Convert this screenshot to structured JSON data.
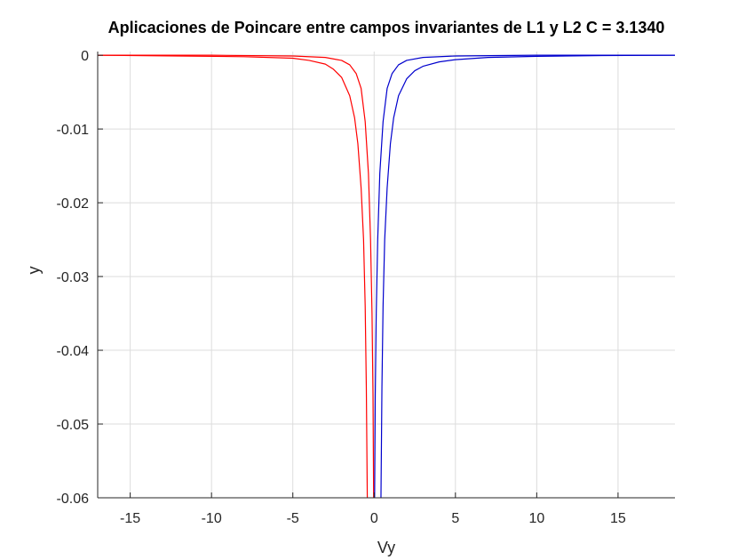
{
  "chart_data": {
    "type": "line",
    "title": "Aplicaciones de Poincare entre campos invariantes de L1 y L2 C = 3.1340",
    "xlabel": "Vy",
    "ylabel": "y",
    "xlim": [
      -17,
      18.5
    ],
    "ylim": [
      -0.06,
      0.0005
    ],
    "xticks": [
      -15,
      -10,
      -5,
      0,
      5,
      10,
      15
    ],
    "xtick_labels": [
      "-15",
      "-10",
      "-5",
      "0",
      "5",
      "10",
      "15"
    ],
    "yticks": [
      0,
      -0.01,
      -0.02,
      -0.03,
      -0.04,
      -0.05,
      -0.06
    ],
    "ytick_labels": [
      "0",
      "-0.01",
      "-0.02",
      "-0.03",
      "-0.04",
      "-0.05",
      "-0.06"
    ],
    "grid": true,
    "series": [
      {
        "color": "#ff0000",
        "points": [
          [
            -17,
            0
          ],
          [
            -12,
            -0.0001
          ],
          [
            -8,
            -0.0002
          ],
          [
            -5,
            -0.0004
          ],
          [
            -4,
            -0.0007
          ],
          [
            -3,
            -0.0012
          ],
          [
            -2.5,
            -0.0019
          ],
          [
            -2,
            -0.003
          ],
          [
            -1.5,
            -0.0055
          ],
          [
            -1.2,
            -0.0085
          ],
          [
            -1,
            -0.012
          ],
          [
            -0.8,
            -0.018
          ],
          [
            -0.65,
            -0.025
          ],
          [
            -0.55,
            -0.034
          ],
          [
            -0.48,
            -0.045
          ],
          [
            -0.42,
            -0.06
          ]
        ]
      },
      {
        "color": "#ff0000",
        "points": [
          [
            -17,
            0
          ],
          [
            -10,
            0
          ],
          [
            -5,
            -0.0001
          ],
          [
            -3,
            -0.0003
          ],
          [
            -2,
            -0.0007
          ],
          [
            -1.5,
            -0.0013
          ],
          [
            -1.1,
            -0.0025
          ],
          [
            -0.8,
            -0.0045
          ],
          [
            -0.55,
            -0.009
          ],
          [
            -0.35,
            -0.016
          ],
          [
            -0.22,
            -0.025
          ],
          [
            -0.13,
            -0.035
          ],
          [
            -0.07,
            -0.046
          ],
          [
            -0.03,
            -0.06
          ]
        ]
      },
      {
        "color": "#0000cd",
        "points": [
          [
            0.03,
            -0.06
          ],
          [
            0.07,
            -0.046
          ],
          [
            0.13,
            -0.035
          ],
          [
            0.22,
            -0.025
          ],
          [
            0.35,
            -0.016
          ],
          [
            0.55,
            -0.009
          ],
          [
            0.8,
            -0.0045
          ],
          [
            1.1,
            -0.0025
          ],
          [
            1.5,
            -0.0013
          ],
          [
            2,
            -0.0007
          ],
          [
            3,
            -0.0003
          ],
          [
            5,
            -0.0001
          ],
          [
            10,
            0
          ],
          [
            18.5,
            0
          ]
        ]
      },
      {
        "color": "#0000cd",
        "points": [
          [
            0.42,
            -0.06
          ],
          [
            0.48,
            -0.045
          ],
          [
            0.55,
            -0.034
          ],
          [
            0.65,
            -0.025
          ],
          [
            0.8,
            -0.018
          ],
          [
            1,
            -0.012
          ],
          [
            1.2,
            -0.0085
          ],
          [
            1.5,
            -0.0055
          ],
          [
            2,
            -0.0032
          ],
          [
            2.5,
            -0.0021
          ],
          [
            3,
            -0.0015
          ],
          [
            4,
            -0.0009
          ],
          [
            5,
            -0.0006
          ],
          [
            7,
            -0.0003
          ],
          [
            10,
            -0.00015
          ],
          [
            14,
            -5e-05
          ],
          [
            18.5,
            0
          ]
        ]
      }
    ]
  }
}
